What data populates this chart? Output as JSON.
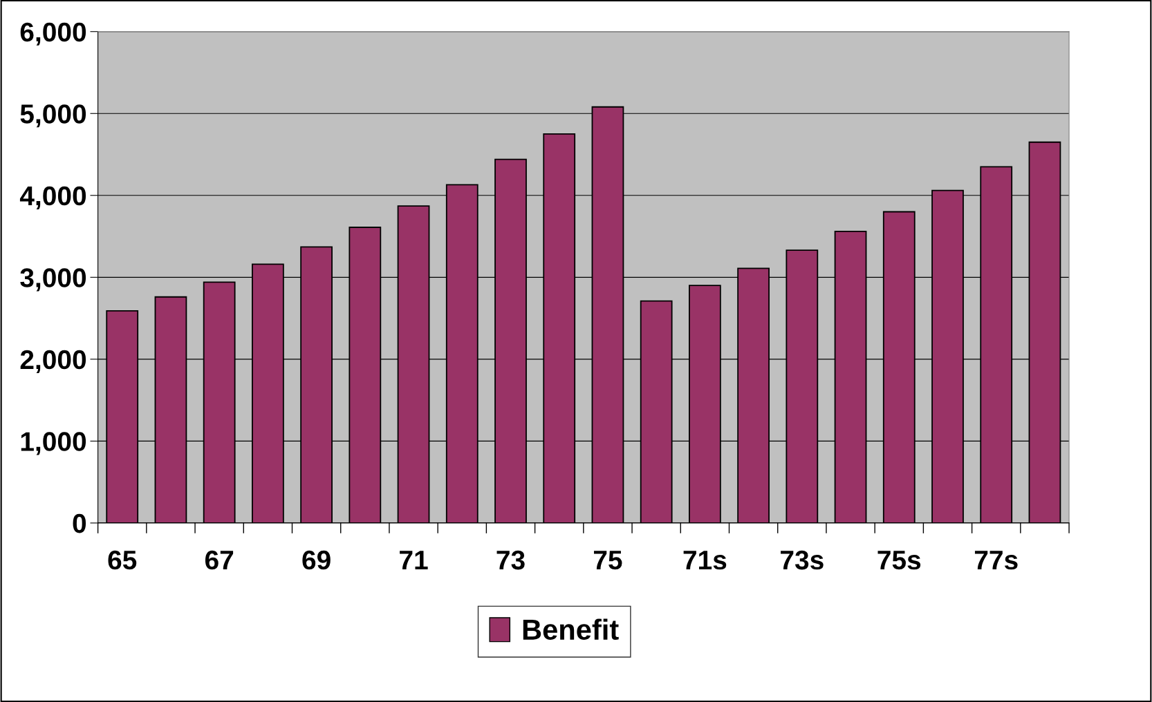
{
  "chart_data": {
    "type": "bar",
    "categories": [
      "65",
      null,
      "67",
      null,
      "69",
      null,
      "71",
      null,
      "73",
      null,
      "75",
      null,
      "71s",
      null,
      "73s",
      null,
      "75s",
      null,
      "77s",
      null
    ],
    "series": [
      {
        "name": "Benefit",
        "color": "#993366",
        "values": [
          2590,
          2760,
          2940,
          3160,
          3370,
          3610,
          3870,
          4130,
          4440,
          4750,
          5080,
          2710,
          2900,
          3110,
          3330,
          3560,
          3800,
          4060,
          4350,
          4650
        ]
      }
    ],
    "ylim": [
      0,
      6000
    ],
    "yticks": [
      {
        "value": 0,
        "label": "0"
      },
      {
        "value": 1000,
        "label": "1,000"
      },
      {
        "value": 2000,
        "label": "2,000"
      },
      {
        "value": 3000,
        "label": "3,000"
      },
      {
        "value": 4000,
        "label": "4,000"
      },
      {
        "value": 5000,
        "label": "5,000"
      },
      {
        "value": 6000,
        "label": "6,000"
      }
    ],
    "grid": "y",
    "legend": "bottom"
  }
}
